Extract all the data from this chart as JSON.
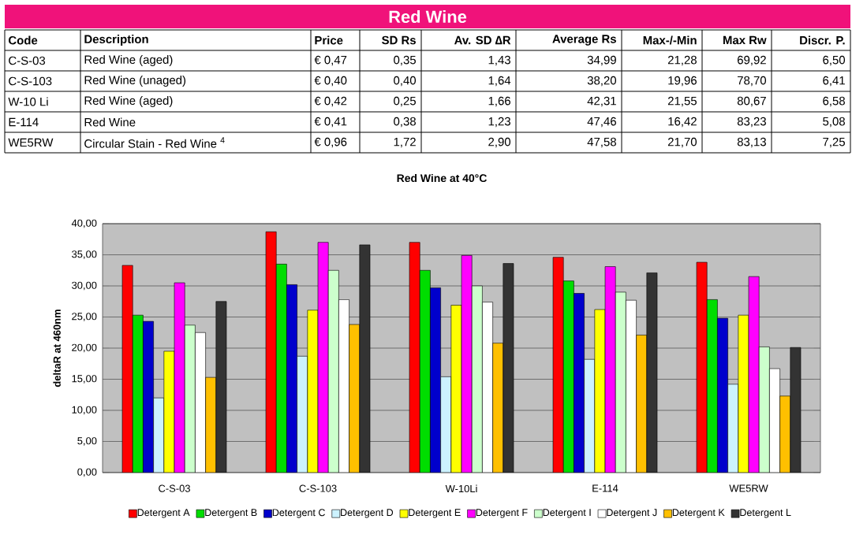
{
  "chart_data": [
    {
      "type": "other",
      "title": "Red Wine",
      "categories": [
        "Code",
        "Description",
        "Price",
        "SD Rs",
        "Av. SD ∆R",
        "Average Rs",
        "Max-/-Min",
        "Max Rw",
        "Discr. P."
      ],
      "annotations": [
        "C-S-03",
        "Red Wine (aged)",
        "€ 0,47",
        "0,35",
        "1,43",
        "34,99",
        "21,28",
        "69,92",
        "6,50",
        "C-S-103",
        "Red Wine (unaged)",
        "€ 0,40",
        "0,40",
        "1,64",
        "38,20",
        "19,96",
        "78,70",
        "6,41",
        "W-10 Li",
        "Red Wine (aged)",
        "€ 0,42",
        "0,25",
        "1,66",
        "42,31",
        "21,55",
        "80,67",
        "6,58",
        "E-114",
        "Red Wine",
        "€ 0,41",
        "0,38",
        "1,23",
        "47,46",
        "16,42",
        "83,23",
        "5,08",
        "WE5RW",
        "Circular Stain - Red Wine $^{4}$",
        "€ 0,96",
        "1,72",
        "2,90",
        "47,58",
        "21,70",
        "83,13",
        "7,25"
      ]
    },
    {
      "type": "bar",
      "title": "Red Wine at 40°C",
      "ylabel": "deltaR at 460nm",
      "categories": [
        "C-S-03",
        "C-S-103",
        "W-10Li",
        "E-114",
        "WE5RW"
      ],
      "ylim": [
        0,
        40
      ],
      "yticks": [
        {
          "value": 0,
          "label": "0,00"
        },
        {
          "value": 5,
          "label": "5,00"
        },
        {
          "value": 10,
          "label": "10,00"
        },
        {
          "value": 15,
          "label": "15,00"
        },
        {
          "value": 20,
          "label": "20,00"
        },
        {
          "value": 25,
          "label": "25,00"
        },
        {
          "value": 30,
          "label": "30,00"
        },
        {
          "value": 35,
          "label": "35,00"
        },
        {
          "value": 40,
          "label": "40,00"
        }
      ],
      "grid": "y",
      "legend": "bottom",
      "series": [
        {
          "name": "Detergent A",
          "color": "#ff0000",
          "values": [
            33.3,
            38.7,
            37.0,
            34.6,
            33.8
          ]
        },
        {
          "name": "Detergent B",
          "color": "#00dd00",
          "values": [
            25.3,
            33.5,
            32.5,
            30.8,
            27.8
          ]
        },
        {
          "name": "Detergent C",
          "color": "#0000cc",
          "values": [
            24.3,
            30.2,
            29.7,
            28.8,
            24.8
          ]
        },
        {
          "name": "Detergent D",
          "color": "#ccf2ff",
          "values": [
            12.0,
            18.7,
            15.4,
            18.2,
            14.2
          ]
        },
        {
          "name": "Detergent E",
          "color": "#ffff00",
          "values": [
            19.5,
            26.1,
            26.9,
            26.2,
            25.3
          ]
        },
        {
          "name": "Detergent F",
          "color": "#ff00ff",
          "values": [
            30.5,
            37.0,
            34.9,
            33.1,
            31.5
          ]
        },
        {
          "name": "Detergent I",
          "color": "#ccffcc",
          "values": [
            23.7,
            32.5,
            30.0,
            29.0,
            20.2
          ]
        },
        {
          "name": "Detergent J",
          "color": "#ffffff",
          "values": [
            22.5,
            27.8,
            27.4,
            27.7,
            16.7
          ]
        },
        {
          "name": "Detergent K",
          "color": "#ffc000",
          "values": [
            15.3,
            23.8,
            20.8,
            22.1,
            12.3
          ]
        },
        {
          "name": "Detergent L",
          "color": "#333333",
          "values": [
            27.5,
            36.6,
            33.6,
            32.1,
            20.1
          ]
        }
      ]
    }
  ]
}
